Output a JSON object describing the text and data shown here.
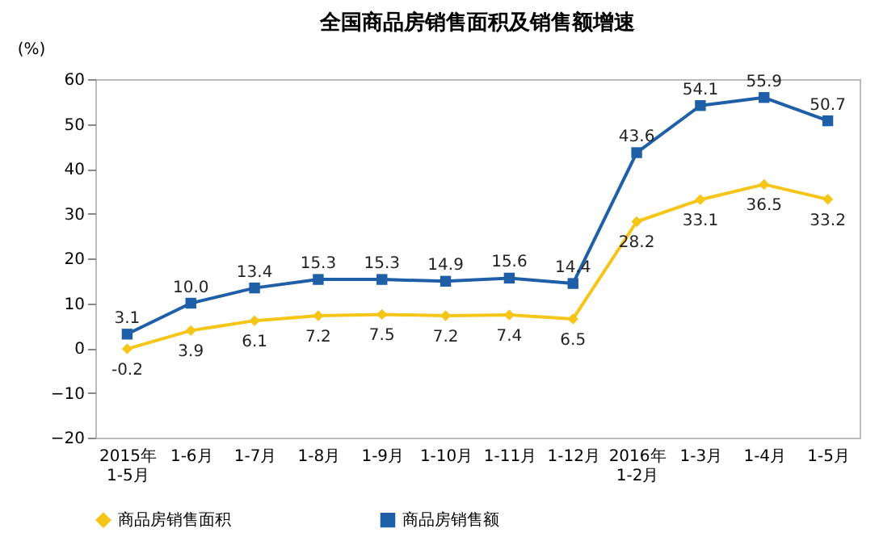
{
  "chart_data": {
    "type": "line",
    "title": "全国商品房销售面积及销售额增速",
    "ylabel": "(%)",
    "categories": [
      "2015年\n1-5月",
      "1-6月",
      "1-7月",
      "1-8月",
      "1-9月",
      "1-10月",
      "1-11月",
      "1-12月",
      "2016年\n1-2月",
      "1-3月",
      "1-4月",
      "1-5月"
    ],
    "series": [
      {
        "name": "商品房销售面积",
        "color": "#f5c518",
        "marker": "diamond",
        "values": [
          -0.2,
          3.9,
          6.1,
          7.2,
          7.5,
          7.2,
          7.4,
          6.5,
          28.2,
          33.1,
          36.5,
          33.2
        ],
        "value_labels": [
          "-0.2",
          "3.9",
          "6.1",
          "7.2",
          "7.5",
          "7.2",
          "7.4",
          "6.5",
          "28.2",
          "33.1",
          "36.5",
          "33.2"
        ]
      },
      {
        "name": "商品房销售额",
        "color": "#1f5fa8",
        "marker": "square",
        "values": [
          3.1,
          10.0,
          13.4,
          15.3,
          15.3,
          14.9,
          15.6,
          14.4,
          43.6,
          54.1,
          55.9,
          50.7
        ],
        "value_labels": [
          "3.1",
          "10.0",
          "13.4",
          "15.3",
          "15.3",
          "14.9",
          "15.6",
          "14.4",
          "43.6",
          "54.1",
          "55.9",
          "50.7"
        ]
      }
    ],
    "ylim": [
      -20,
      60
    ],
    "yticks": [
      -20,
      -10,
      0,
      10,
      20,
      30,
      40,
      50,
      60
    ],
    "grid": false,
    "legend": "bottom",
    "line_style": "solid"
  }
}
